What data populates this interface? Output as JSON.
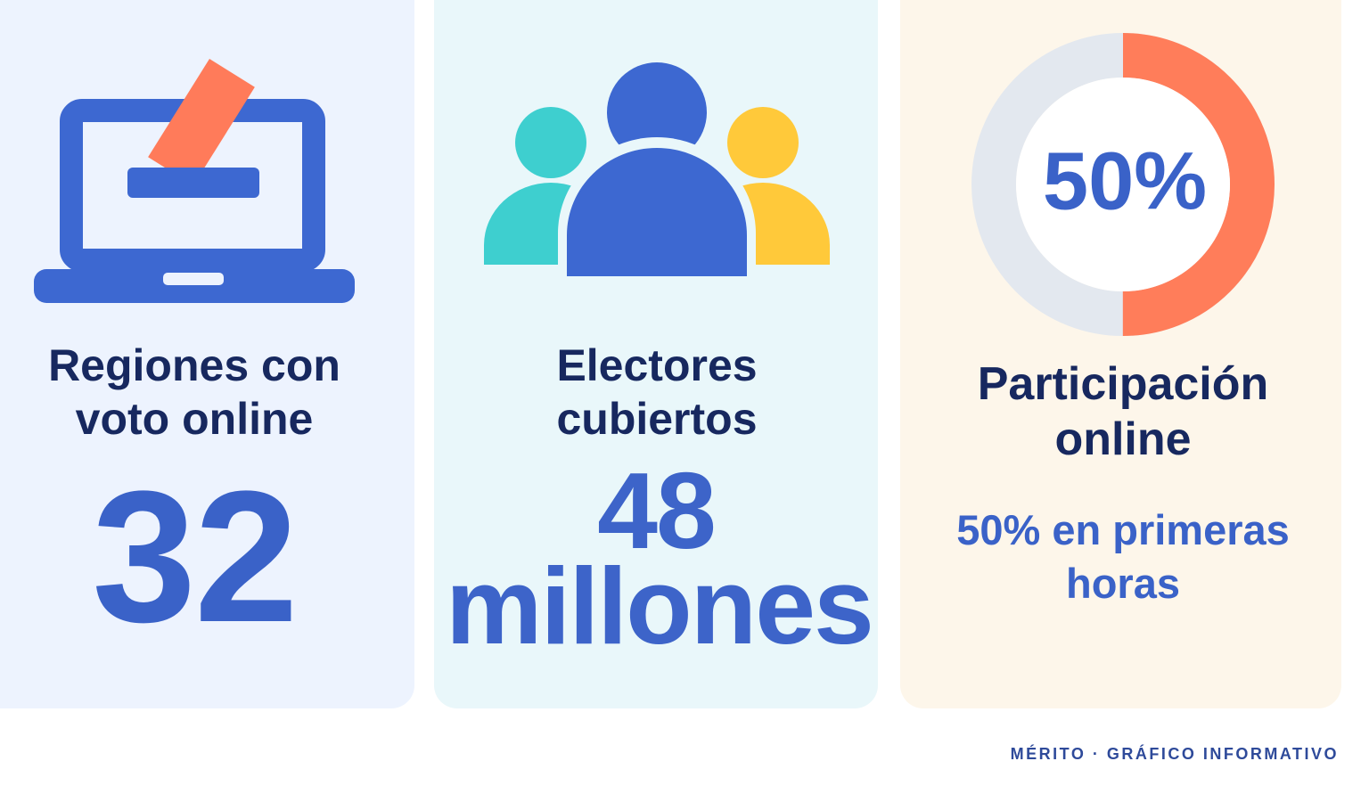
{
  "cards": [
    {
      "title": "Regiones con voto online",
      "value": "32"
    },
    {
      "title": "Electores cubiertos",
      "value": "48 millones"
    },
    {
      "title": "Participación online",
      "donut": {
        "value": 50,
        "label": "50%"
      },
      "note": "50% en primeras horas"
    }
  ],
  "footer": "MÉRITO · GRÁFICO INFORMATIVO"
}
